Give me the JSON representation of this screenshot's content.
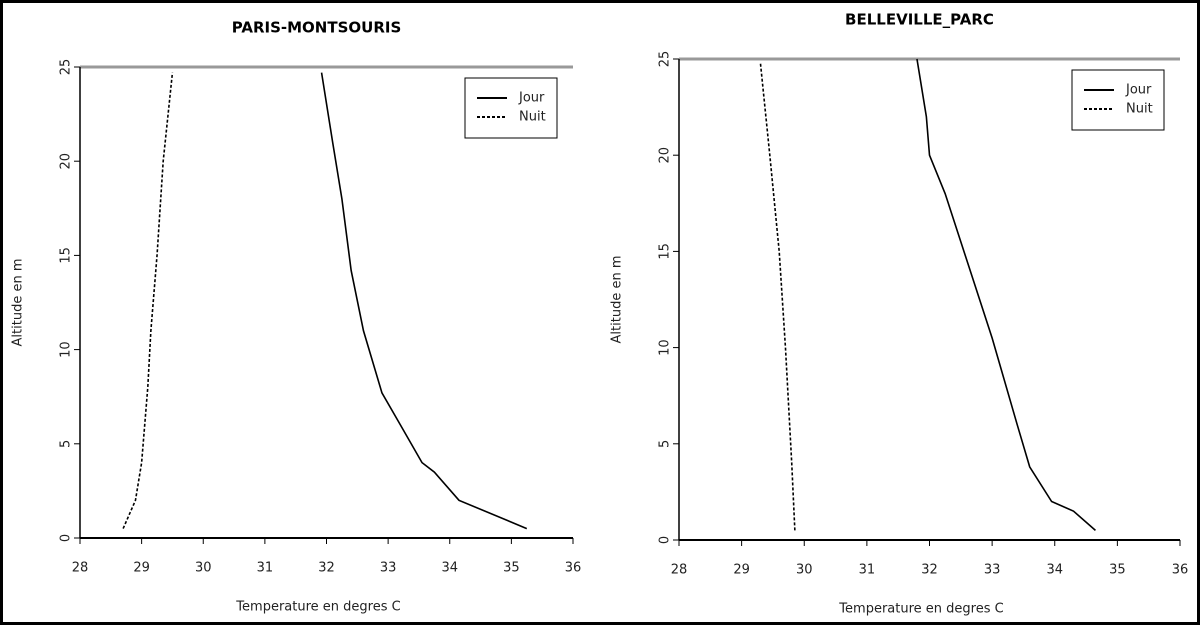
{
  "chart_data": [
    {
      "type": "line",
      "title": "PARIS-MONTSOURIS",
      "x_label": "Temperature en degres C",
      "y_label": "Altitude en m",
      "xlim": [
        28,
        36
      ],
      "xticks": [
        28,
        29,
        30,
        31,
        32,
        33,
        34,
        35,
        36
      ],
      "ylim": [
        0,
        25
      ],
      "yticks": [
        0,
        5,
        10,
        15,
        20,
        25
      ],
      "legend": "top-right",
      "series": [
        {
          "name": "Jour",
          "color": "#000000",
          "dash": "solid",
          "x": [
            35.25,
            34.15,
            33.75,
            33.55,
            33.2,
            32.9,
            32.6,
            32.4,
            32.25,
            32.1,
            31.92
          ],
          "values": [
            0.5,
            2,
            3.5,
            4,
            6,
            7.7,
            11,
            14.2,
            18,
            21,
            24.7
          ]
        },
        {
          "name": "Nuit",
          "color": "#000000",
          "dash": "dotted",
          "x": [
            28.7,
            28.9,
            29.0,
            29.1,
            29.15,
            29.25,
            29.35,
            29.5
          ],
          "values": [
            0.5,
            2,
            4,
            8,
            11,
            15,
            20,
            24.7
          ]
        }
      ]
    },
    {
      "type": "line",
      "title": "BELLEVILLE_PARC",
      "x_label": "Temperature en degres C",
      "y_label": "Altitude en m",
      "xlim": [
        28,
        36
      ],
      "xticks": [
        28,
        29,
        30,
        31,
        32,
        33,
        34,
        35,
        36
      ],
      "ylim": [
        0,
        25
      ],
      "yticks": [
        0,
        5,
        10,
        15,
        20,
        25
      ],
      "legend": "top-right",
      "series": [
        {
          "name": "Jour",
          "color": "#000000",
          "dash": "solid",
          "x": [
            34.65,
            34.3,
            33.95,
            33.6,
            33.4,
            33.0,
            32.6,
            32.25,
            32.0,
            31.95,
            31.8
          ],
          "values": [
            0.5,
            1.5,
            2,
            3.8,
            6,
            10.5,
            14.5,
            18,
            20,
            22,
            25
          ]
        },
        {
          "name": "Nuit",
          "color": "#000000",
          "dash": "dotted",
          "x": [
            29.85,
            29.8,
            29.7,
            29.6,
            29.45,
            29.3
          ],
          "values": [
            0.5,
            4,
            10,
            15,
            20,
            24.8
          ]
        }
      ]
    }
  ]
}
